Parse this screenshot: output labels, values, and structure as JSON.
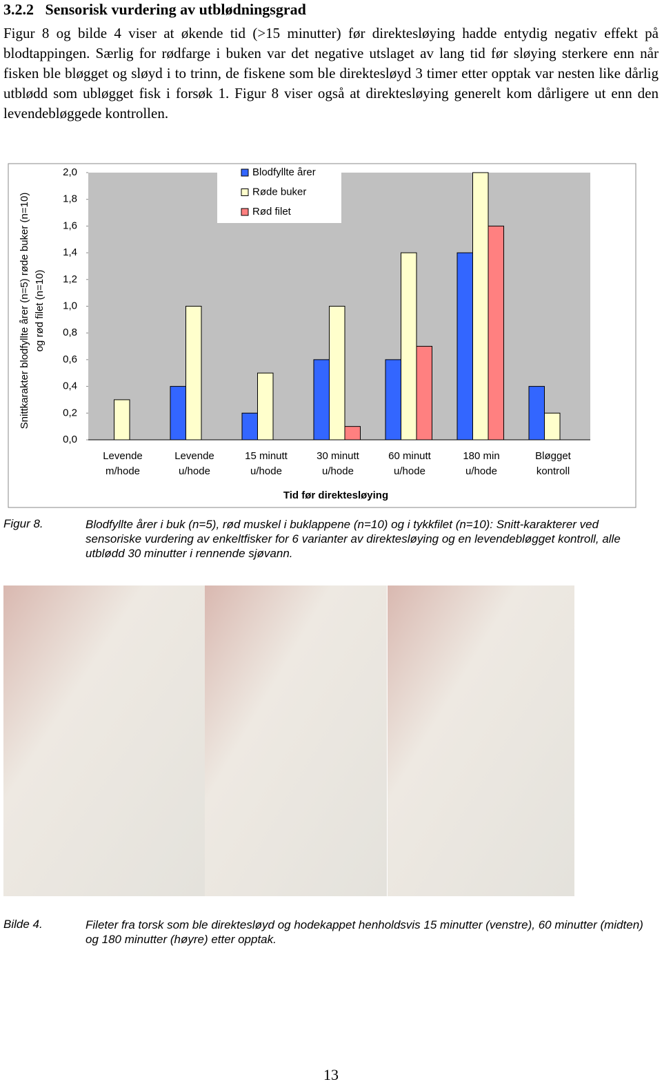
{
  "heading": {
    "number": "3.2.2",
    "title": "Sensorisk vurdering av utblødningsgrad"
  },
  "paragraph": "Figur 8 og bilde 4 viser at økende tid (>15 minutter) før direktesløying hadde entydig negativ effekt på blodtappingen. Særlig for rødfarge i buken var det negative utslaget av lang tid før sløying sterkere enn når fisken ble bløgget og sløyd i to trinn, de fiskene som ble direktesløyd 3 timer etter opptak var nesten like dårlig utblødd som ubløgget fisk i forsøk 1. Figur 8 viser også at direktesløying generelt kom dårligere ut enn den levendebløggede kontrollen.",
  "chart_data": {
    "type": "bar",
    "y_label": [
      "Snittkarakter blodfyllte årer (n=5) røde buker (n=10)",
      "og rød filet (n=10)"
    ],
    "x_label": "Tid før direktesløying",
    "categories": [
      [
        "Levende",
        "m/hode"
      ],
      [
        "Levende",
        "u/hode"
      ],
      [
        "15 minutt",
        "u/hode"
      ],
      [
        "30 minutt",
        "u/hode"
      ],
      [
        "60 minutt",
        "u/hode"
      ],
      [
        "180 min",
        "u/hode"
      ],
      [
        "Bløgget",
        "kontroll"
      ]
    ],
    "series": [
      {
        "name": "Blodfyllte årer",
        "color": "#3366ff",
        "values": [
          0,
          0.4,
          0.2,
          0.6,
          0.6,
          1.4,
          0.4
        ]
      },
      {
        "name": "Røde buker",
        "color": "#ffffcc",
        "values": [
          0.3,
          1.0,
          0.5,
          1.0,
          1.4,
          2.0,
          0.2
        ]
      },
      {
        "name": "Rød filet",
        "color": "#ff8080",
        "values": [
          null,
          null,
          null,
          0.1,
          0.7,
          1.6,
          null
        ]
      }
    ],
    "ylim": [
      0,
      2
    ],
    "yticks": [
      {
        "value": 0,
        "label": "0,0"
      },
      {
        "value": 0.2,
        "label": "0,2"
      },
      {
        "value": 0.4,
        "label": "0,4"
      },
      {
        "value": 0.6,
        "label": "0,6"
      },
      {
        "value": 0.8,
        "label": "0,8"
      },
      {
        "value": 1,
        "label": "1,0"
      },
      {
        "value": 1.2,
        "label": "1,2"
      },
      {
        "value": 1.4,
        "label": "1,4"
      },
      {
        "value": 1.6,
        "label": "1,6"
      },
      {
        "value": 1.8,
        "label": "1,8"
      },
      {
        "value": 2,
        "label": "2,0"
      }
    ],
    "grid": false,
    "legend": "top"
  },
  "figure_caption": {
    "label": "Figur 8.",
    "text": "Blodfyllte årer i buk (n=5), rød muskel i buklappene (n=10) og i tykkfilet (n=10): Snitt-karakterer ved sensoriske vurdering av enkeltfisker for 6 varianter av direktesløying og en levendebløgget kontroll, alle utblødd 30 minutter i rennende sjøvann."
  },
  "image_caption": {
    "label": "Bilde 4.",
    "text": "Fileter fra torsk som ble direktesløyd og hodekappet henholdsvis 15 minutter (venstre), 60 minutter (midten) og 180 minutter (høyre) etter opptak."
  },
  "page_number": "13"
}
